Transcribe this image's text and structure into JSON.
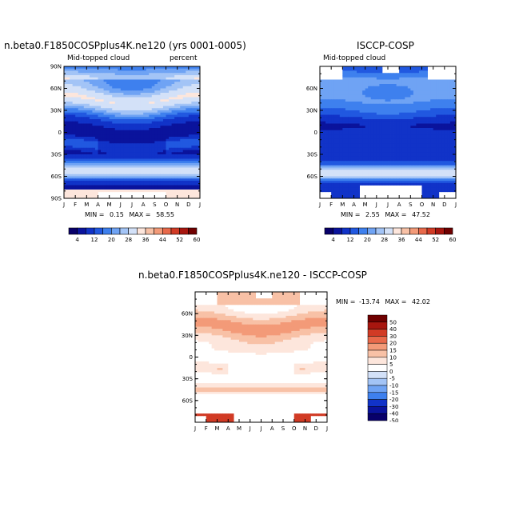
{
  "chart_data": [
    {
      "type": "heatmap",
      "title": "n.beta0.F1850COSPplus4K.ne120 (yrs 0001-0005)",
      "left_label": "Mid-topped cloud",
      "right_label": "percent",
      "x_ticks": [
        "J",
        "F",
        "M",
        "A",
        "M",
        "J",
        "J",
        "A",
        "S",
        "O",
        "N",
        "D",
        "J"
      ],
      "y_ticks": [
        "90N",
        "60N",
        "30N",
        "0",
        "30S",
        "60S",
        "90S"
      ],
      "stats": {
        "min_label": "MIN =",
        "min": "0.15",
        "max_label": "MAX =",
        "max": "58.55"
      },
      "colorbar_labels": [
        "4",
        "12",
        "20",
        "28",
        "36",
        "44",
        "52",
        "60"
      ]
    },
    {
      "type": "heatmap",
      "title": "ISCCP-COSP",
      "left_label": "Mid-topped cloud",
      "x_ticks": [
        "J",
        "F",
        "M",
        "A",
        "M",
        "J",
        "J",
        "A",
        "S",
        "O",
        "N",
        "D",
        "J"
      ],
      "y_ticks": [
        "60N",
        "30N",
        "0",
        "30S",
        "60S"
      ],
      "stats": {
        "min_label": "MIN =",
        "min": "2.55",
        "max_label": "MAX =",
        "max": "47.52"
      },
      "colorbar_labels": [
        "4",
        "12",
        "20",
        "28",
        "36",
        "44",
        "52",
        "60"
      ]
    },
    {
      "type": "heatmap",
      "title": "n.beta0.F1850COSPplus4K.ne120 - ISCCP-COSP",
      "x_ticks": [
        "J",
        "F",
        "M",
        "A",
        "M",
        "J",
        "J",
        "A",
        "S",
        "O",
        "N",
        "D",
        "J"
      ],
      "y_ticks": [
        "60N",
        "30N",
        "0",
        "30S",
        "60S"
      ],
      "stats": {
        "min_label": "MIN =",
        "min": "-13.74",
        "max_label": "MAX =",
        "max": "42.02"
      },
      "colorbar_labels": [
        "50",
        "40",
        "30",
        "20",
        "15",
        "10",
        "5",
        "0",
        "-5",
        "-10",
        "-15",
        "-20",
        "-30",
        "-40",
        "-50"
      ]
    }
  ],
  "colors": {
    "seq_palette": [
      "#08006a",
      "#0a139c",
      "#1133c8",
      "#2158e0",
      "#3e80ee",
      "#6fa3f4",
      "#a3c4f6",
      "#d3e1f8",
      "#fde6dc",
      "#f8c1a6",
      "#f39a78",
      "#e8694a",
      "#d13b25",
      "#a8160f",
      "#6f0000"
    ],
    "diff_palette": [
      "#6f0000",
      "#a8160f",
      "#d13b25",
      "#e8694a",
      "#f39a78",
      "#f8c1a6",
      "#fde6dc",
      "#ffffff",
      "#d3e1f8",
      "#a3c4f6",
      "#6fa3f4",
      "#3e80ee",
      "#1133c8",
      "#0a139c",
      "#08006a"
    ]
  }
}
